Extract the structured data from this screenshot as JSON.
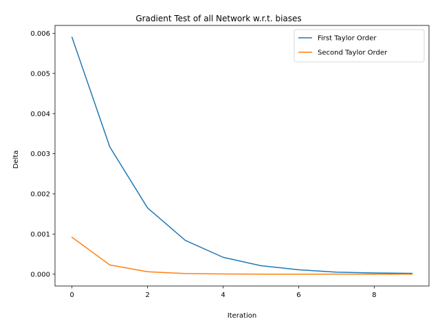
{
  "chart_data": {
    "type": "line",
    "title": "Gradient Test of all Network w.r.t. biases",
    "xlabel": "Iteration",
    "ylabel": "Delta",
    "x": [
      0,
      1,
      2,
      3,
      4,
      5,
      6,
      7,
      8,
      9
    ],
    "series": [
      {
        "name": "First Taylor Order",
        "color": "#1f77b4",
        "values": [
          0.0059,
          0.00317,
          0.00165,
          0.00084,
          0.00042,
          0.00021,
          0.00011,
          5e-05,
          3e-05,
          2e-05
        ]
      },
      {
        "name": "Second Taylor Order",
        "color": "#ff7f0e",
        "values": [
          0.00092,
          0.00023,
          6e-05,
          1.5e-05,
          4e-06,
          1e-06,
          3e-07,
          1e-07,
          3e-08,
          1e-08
        ]
      }
    ],
    "xlim": [
      -0.45,
      9.45
    ],
    "ylim": [
      -0.000295,
      0.006195
    ],
    "xticks": [
      0,
      2,
      4,
      6,
      8
    ],
    "xtick_labels": [
      "0",
      "2",
      "4",
      "6",
      "8"
    ],
    "yticks": [
      0,
      0.001,
      0.002,
      0.003,
      0.004,
      0.005,
      0.006
    ],
    "ytick_labels": [
      "0.000",
      "0.001",
      "0.002",
      "0.003",
      "0.004",
      "0.005",
      "0.006"
    ],
    "grid": false,
    "legend_position": "top-right"
  }
}
